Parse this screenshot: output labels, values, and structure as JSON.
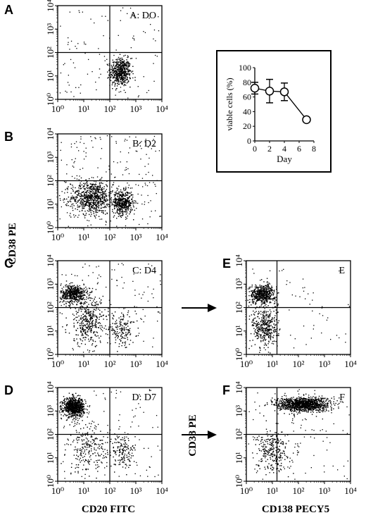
{
  "panel_letters": [
    "A",
    "B",
    "C",
    "D",
    "E",
    "F"
  ],
  "y_axis_label_left": "CD38 PE",
  "y_axis_label_right": "CD38 PE",
  "x_axis_label_left": "CD20 FITC",
  "x_axis_label_right": "CD138 PECY5",
  "chart_data": [
    {
      "type": "scatter",
      "panel": "A",
      "label": "A: DO",
      "xlim": [
        1,
        10000
      ],
      "ylim": [
        1,
        10000
      ],
      "log_scale": true,
      "ticks": [
        "10⁰",
        "10¹",
        "10²",
        "10³",
        "10⁴"
      ],
      "quadrant_lines": {
        "x": 100,
        "y": 100
      },
      "clusters": [
        {
          "cx": 250,
          "cy": 15,
          "sx": 0.2,
          "sy": 0.3,
          "n": 520
        }
      ],
      "background_points": 110
    },
    {
      "type": "scatter",
      "panel": "B",
      "label": "B: D2",
      "xlim": [
        1,
        10000
      ],
      "ylim": [
        1,
        10000
      ],
      "log_scale": true,
      "ticks": [
        "10⁰",
        "10¹",
        "10²",
        "10³",
        "10⁴"
      ],
      "quadrant_lines": {
        "x": 100,
        "y": 100
      },
      "clusters": [
        {
          "cx": 20,
          "cy": 20,
          "sx": 0.4,
          "sy": 0.35,
          "n": 700
        },
        {
          "cx": 300,
          "cy": 12,
          "sx": 0.2,
          "sy": 0.25,
          "n": 450
        }
      ],
      "background_points": 200
    },
    {
      "type": "scatter",
      "panel": "C",
      "label": "C: D4",
      "xlim": [
        1,
        10000
      ],
      "ylim": [
        1,
        10000
      ],
      "log_scale": true,
      "ticks": [
        "10⁰",
        "10¹",
        "10²",
        "10³",
        "10⁴"
      ],
      "quadrant_lines": {
        "x": 100,
        "y": 100
      },
      "clusters": [
        {
          "cx": 4,
          "cy": 400,
          "sx": 0.25,
          "sy": 0.2,
          "n": 500
        },
        {
          "cx": 15,
          "cy": 25,
          "sx": 0.4,
          "sy": 0.5,
          "n": 380
        },
        {
          "cx": 300,
          "cy": 12,
          "sx": 0.25,
          "sy": 0.35,
          "n": 150
        }
      ],
      "background_points": 120
    },
    {
      "type": "scatter",
      "panel": "D",
      "label": "D: D7",
      "xlim": [
        1,
        10000
      ],
      "ylim": [
        1,
        10000
      ],
      "log_scale": true,
      "ticks": [
        "10⁰",
        "10¹",
        "10²",
        "10³",
        "10⁴"
      ],
      "quadrant_lines": {
        "x": 100,
        "y": 100
      },
      "clusters": [
        {
          "cx": 4,
          "cy": 1500,
          "sx": 0.2,
          "sy": 0.2,
          "n": 800
        },
        {
          "cx": 15,
          "cy": 25,
          "sx": 0.4,
          "sy": 0.5,
          "n": 220
        },
        {
          "cx": 300,
          "cy": 20,
          "sx": 0.25,
          "sy": 0.35,
          "n": 140
        }
      ],
      "background_points": 120
    },
    {
      "type": "scatter",
      "panel": "E",
      "label": "E",
      "xlim": [
        1,
        10000
      ],
      "ylim": [
        1,
        10000
      ],
      "log_scale": true,
      "ticks": [
        "10⁰",
        "10¹",
        "10²",
        "10³",
        "10⁴"
      ],
      "quadrant_lines": {
        "x": 15,
        "y": 100
      },
      "clusters": [
        {
          "cx": 4,
          "cy": 400,
          "sx": 0.25,
          "sy": 0.2,
          "n": 520
        },
        {
          "cx": 5,
          "cy": 15,
          "sx": 0.25,
          "sy": 0.45,
          "n": 380
        }
      ],
      "background_points": 60
    },
    {
      "type": "scatter",
      "panel": "F",
      "label": "F",
      "xlim": [
        1,
        10000
      ],
      "ylim": [
        1,
        10000
      ],
      "log_scale": true,
      "ticks": [
        "10⁰",
        "10¹",
        "10²",
        "10³",
        "10⁴"
      ],
      "quadrant_lines": {
        "x": 15,
        "y": 100
      },
      "clusters": [
        {
          "cx": 150,
          "cy": 2000,
          "sx": 0.5,
          "sy": 0.15,
          "n": 1100
        },
        {
          "cx": 10,
          "cy": 20,
          "sx": 0.3,
          "sy": 0.45,
          "n": 260
        }
      ],
      "background_points": 120
    },
    {
      "type": "line",
      "panel": "inset",
      "x": [
        0,
        2,
        4,
        7
      ],
      "y": [
        72,
        68,
        67,
        29
      ],
      "error": [
        8,
        16,
        12,
        3
      ],
      "xlabel": "Day",
      "ylabel": "viable cells (%)",
      "xlim": [
        0,
        8
      ],
      "ylim": [
        0,
        100
      ],
      "xticks": [
        "0",
        "2",
        "4",
        "6",
        "8"
      ],
      "yticks": [
        "0",
        "20",
        "40",
        "60",
        "80",
        "100"
      ]
    }
  ]
}
